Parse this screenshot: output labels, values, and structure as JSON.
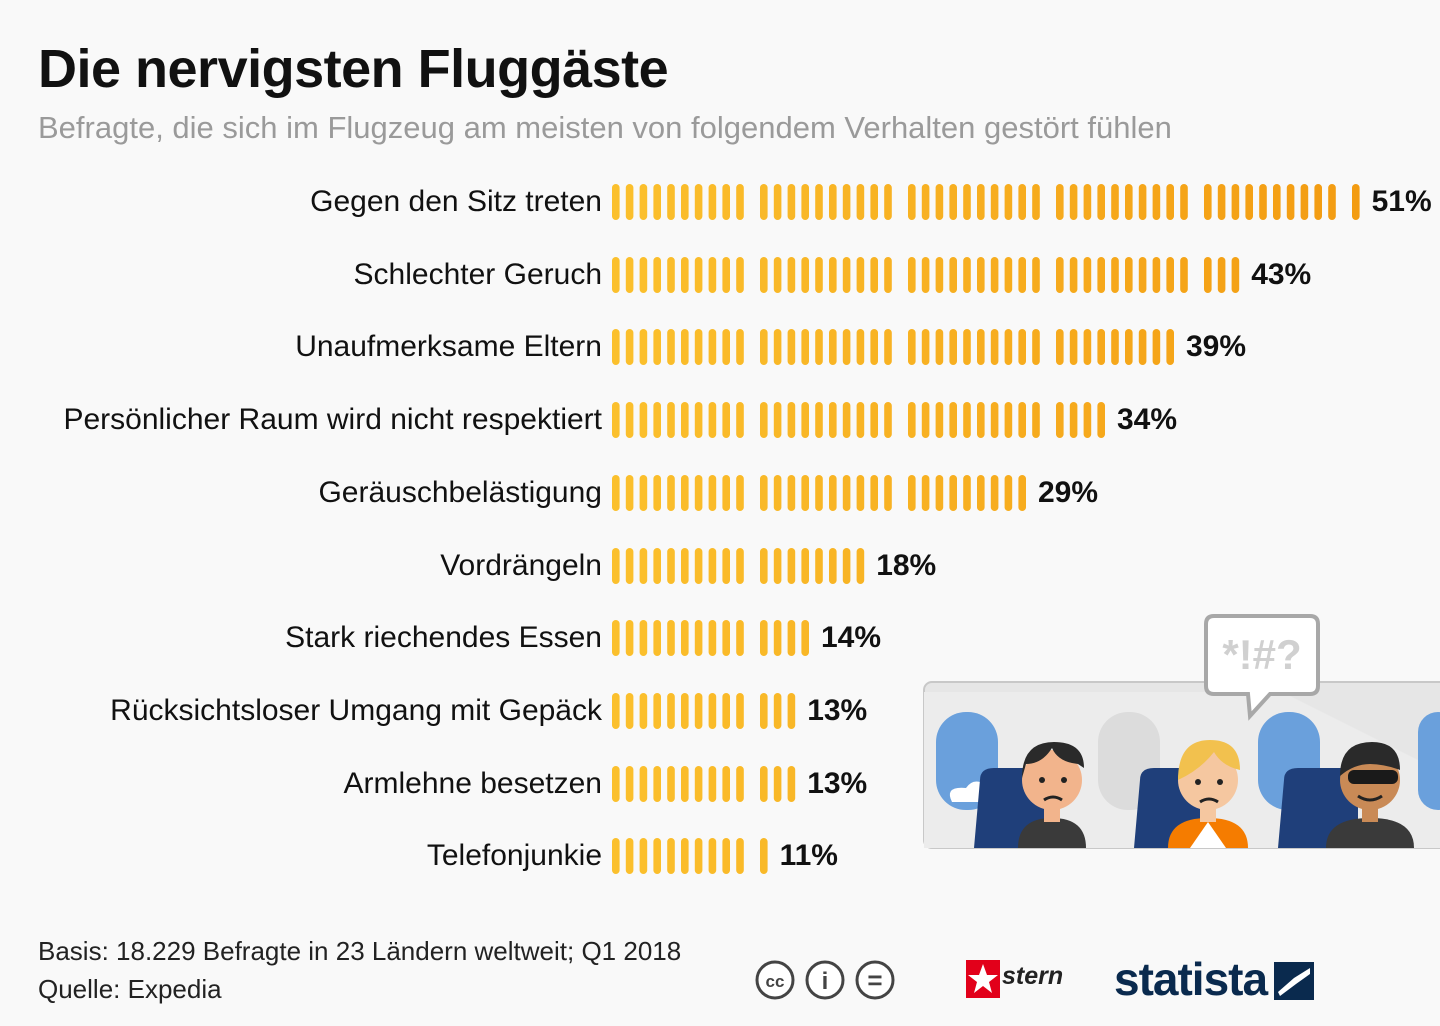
{
  "title": "Die nervigsten Fluggäste",
  "subtitle": "Befragte, die sich im Flugzeug am meisten von folgendem Verhalten gestört fühlen",
  "chart_data": {
    "type": "bar",
    "orientation": "horizontal",
    "title": "Die nervigsten Fluggäste",
    "subtitle": "Befragte, die sich im Flugzeug am meisten von folgendem Verhalten gestört fühlen",
    "unit": "%",
    "categories": [
      "Gegen den Sitz treten",
      "Schlechter Geruch",
      "Unaufmerksame Eltern",
      "Persönlicher Raum wird nicht respektiert",
      "Geräuschbelästigung",
      "Vordrängeln",
      "Stark riechendes Essen",
      "Rücksichtsloser Umgang mit Gepäck",
      "Armlehne besetzen",
      "Telefonjunkie"
    ],
    "values": [
      51,
      43,
      39,
      34,
      29,
      18,
      14,
      13,
      13,
      11
    ],
    "value_labels": [
      "51%",
      "43%",
      "39%",
      "34%",
      "29%",
      "18%",
      "14%",
      "13%",
      "13%",
      "11%"
    ],
    "xlim": [
      0,
      51
    ],
    "colors": {
      "light": "#fbc02d",
      "dark": "#f39c12"
    }
  },
  "illustration": {
    "speech_text": "*!#?"
  },
  "footer": {
    "basis": "Basis: 18.229 Befragte in 23 Ländern weltweit; Q1 2018",
    "source": "Quelle: Expedia"
  },
  "logos": {
    "cc_icons": [
      "cc-icon",
      "by-icon",
      "nd-icon"
    ],
    "cc_symbols": [
      "cc",
      "i",
      "="
    ],
    "stern": "stern",
    "statista": "statista"
  }
}
